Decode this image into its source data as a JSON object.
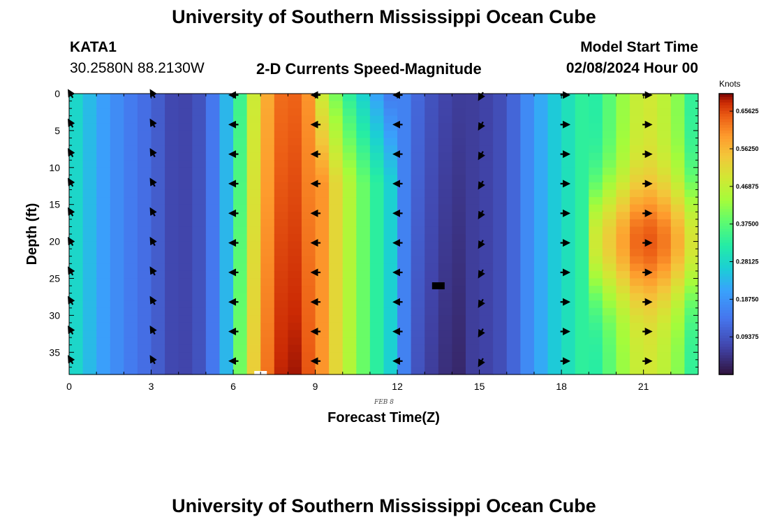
{
  "page": {
    "title": "University of Southern Mississippi Ocean Cube",
    "station": "KATA1",
    "coords": "30.2580N  88.2130W",
    "subtitle": "2-D Currents Speed-Magnitude",
    "model_start_label": "Model Start Time",
    "model_start_value": "02/08/2024 Hour 00",
    "date_label": "FEB 8",
    "footer_title": "University of Southern Mississippi Ocean Cube"
  },
  "colors": {
    "background": "#ffffff",
    "arrow": "#000000"
  },
  "chart_data": {
    "type": "heatmap",
    "title": "2-D Currents Speed-Magnitude",
    "xlabel": "Forecast Time(Z)",
    "ylabel": "Depth (ft)",
    "xlim": [
      0,
      23
    ],
    "ylim": [
      0,
      38
    ],
    "y_inverted": true,
    "x_ticks": [
      0,
      3,
      6,
      9,
      12,
      15,
      18,
      21
    ],
    "y_ticks": [
      0,
      5,
      10,
      15,
      20,
      25,
      30,
      35
    ],
    "colorbar": {
      "label": "Knots",
      "min": 0,
      "max": 0.7,
      "ticks": [
        "0.65625",
        "0.56250",
        "0.46875",
        "0.37500",
        "0.28125",
        "0.18750",
        "0.09375"
      ],
      "tick_values": [
        0.65625,
        0.5625,
        0.46875,
        0.375,
        0.28125,
        0.1875,
        0.09375
      ]
    },
    "hour_profile_knots": [
      0.3,
      0.22,
      0.16,
      0.12,
      0.06,
      0.1,
      0.28,
      0.55,
      0.66,
      0.58,
      0.42,
      0.3,
      0.18,
      0.1,
      0.06,
      0.06,
      0.09,
      0.2,
      0.28,
      0.35,
      0.45,
      0.55,
      0.5,
      0.35
    ],
    "arrow_hours": [
      0,
      3,
      6,
      9,
      12,
      15,
      18,
      21
    ],
    "arrow_depths_ft": [
      0,
      4,
      8,
      12,
      16,
      20,
      24,
      28,
      32,
      36
    ],
    "arrow_direction_deg": [
      240,
      240,
      180,
      180,
      180,
      120,
      0,
      0
    ],
    "masked_cells": [
      {
        "hour": 13.5,
        "depth": 26,
        "color": "#000000"
      },
      {
        "hour": 7.0,
        "depth": 38,
        "color": "#ffffff"
      }
    ]
  }
}
